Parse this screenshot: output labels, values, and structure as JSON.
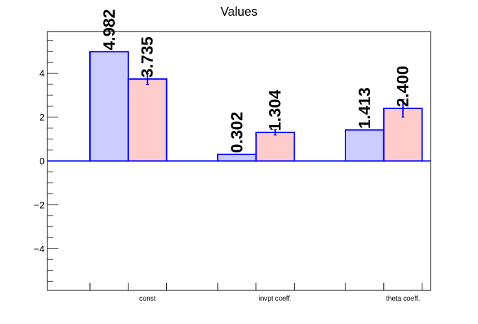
{
  "chart_data": {
    "type": "bar",
    "title": "Values",
    "categories": [
      "const",
      "invpt coeff.",
      "theta coeff."
    ],
    "series": [
      {
        "values": [
          4.982,
          0.302,
          1.413
        ],
        "errors": [
          0,
          0,
          0
        ],
        "fill": "#ccccff",
        "stroke": "#0000ff"
      },
      {
        "values": [
          3.735,
          1.304,
          2.4
        ],
        "errors": [
          0.25,
          0.12,
          0.4
        ],
        "fill": "#ffcccc",
        "stroke": "#0000ff"
      }
    ],
    "data_labels": [
      [
        "4.982",
        "0.302",
        "1.413"
      ],
      [
        "3.735",
        "1.304",
        "2.400"
      ]
    ],
    "ylim": [
      -5.9,
      5.9
    ],
    "yticks": [
      -4,
      -2,
      0,
      2,
      4
    ],
    "ytick_labels": [
      "−4",
      "−2",
      "0",
      "2",
      "4"
    ],
    "xlabel": "",
    "ylabel": "",
    "grid": false,
    "legend": "none"
  }
}
